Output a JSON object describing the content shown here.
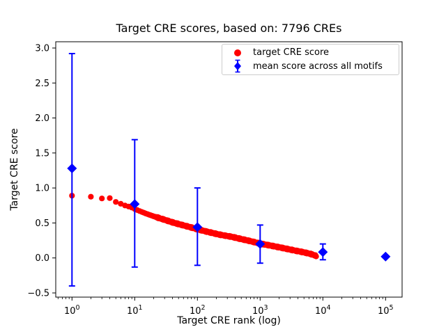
{
  "chart_data": {
    "type": "scatter",
    "title": "Target CRE scores, based on: 7796 CREs",
    "xlabel": "Target CRE rank (log)",
    "ylabel": "Target CRE score",
    "x_scale": "log",
    "grid": false,
    "legend": {
      "position": "upper right"
    },
    "n_cres": 7796,
    "x_axis": {
      "tick_exponents": [
        0,
        1,
        2,
        3,
        4,
        5
      ],
      "tick_values": [
        1,
        10,
        100,
        1000,
        10000,
        100000
      ],
      "range_log10": [
        -0.26,
        5.26
      ],
      "minor_ticks": true
    },
    "y_axis": {
      "tick_values": [
        -0.5,
        0.0,
        0.5,
        1.0,
        1.5,
        2.0,
        2.5,
        3.0
      ],
      "tick_labels": [
        "−0.5",
        "0.0",
        "0.5",
        "1.0",
        "1.5",
        "2.0",
        "2.5",
        "3.0"
      ],
      "range": [
        -0.56,
        3.09
      ]
    },
    "series": [
      {
        "name": "target CRE score",
        "color": "#ff0000",
        "marker": "circle",
        "n_points": 7796,
        "sampling": "piecewise-linear in log10(rank)",
        "points": [
          [
            1,
            0.89
          ],
          [
            2,
            0.875
          ],
          [
            3,
            0.85
          ],
          [
            4,
            0.855
          ],
          [
            5,
            0.8
          ],
          [
            6,
            0.775
          ],
          [
            7,
            0.75
          ],
          [
            8,
            0.735
          ],
          [
            9,
            0.72
          ],
          [
            10,
            0.7
          ],
          [
            12,
            0.67
          ],
          [
            15,
            0.635
          ],
          [
            20,
            0.595
          ],
          [
            30,
            0.545
          ],
          [
            43,
            0.5
          ],
          [
            60,
            0.465
          ],
          [
            80,
            0.435
          ],
          [
            100,
            0.41
          ],
          [
            150,
            0.37
          ],
          [
            220,
            0.335
          ],
          [
            360,
            0.3
          ],
          [
            500,
            0.27
          ],
          [
            700,
            0.24
          ],
          [
            1000,
            0.205
          ],
          [
            1500,
            0.175
          ],
          [
            2200,
            0.145
          ],
          [
            3600,
            0.105
          ],
          [
            5000,
            0.08
          ],
          [
            6500,
            0.055
          ],
          [
            7796,
            0.03
          ]
        ]
      },
      {
        "name": "mean score across all motifs",
        "color": "#0000ff",
        "marker": "diamond",
        "x": [
          1,
          10,
          100,
          1000,
          10000,
          100000
        ],
        "y": [
          1.28,
          0.77,
          0.44,
          0.2,
          0.085,
          0.02
        ],
        "err_top": [
          2.92,
          1.69,
          1.0,
          0.47,
          0.2,
          null
        ],
        "err_bot": [
          -0.4,
          -0.13,
          -0.105,
          -0.075,
          -0.026,
          null
        ]
      }
    ]
  }
}
